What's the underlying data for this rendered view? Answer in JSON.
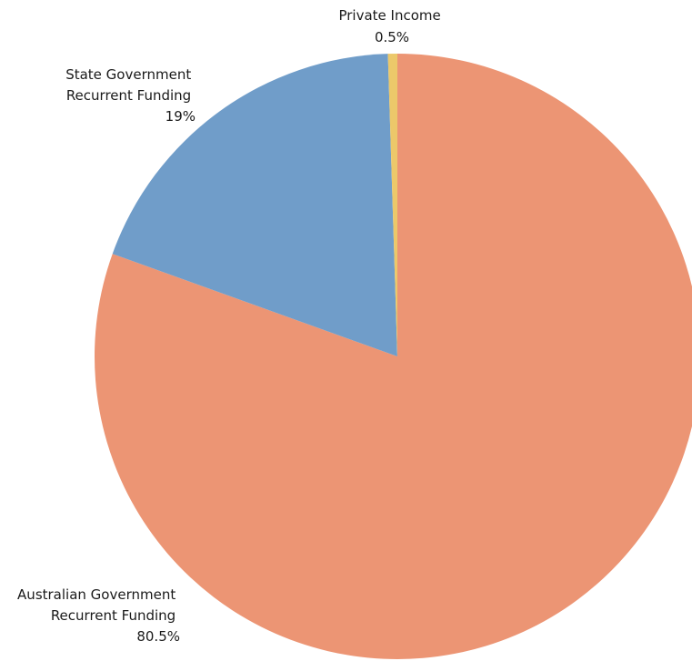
{
  "chart_data": {
    "type": "pie",
    "slices": [
      {
        "label_lines": [
          "Australian Government",
          "Recurrent Funding"
        ],
        "value": 80.5,
        "value_label": "80.5%",
        "color": "#ec9574"
      },
      {
        "label_lines": [
          "State Government",
          "Recurrent Funding"
        ],
        "value": 19,
        "value_label": "19%",
        "color": "#709dc9"
      },
      {
        "label_lines": [
          "Private Income"
        ],
        "value": 0.5,
        "value_label": "0.5%",
        "color": "#ecc86a"
      }
    ],
    "start_angle": "12 o'clock",
    "direction": "clockwise",
    "legend": "none",
    "labels": "outside"
  }
}
